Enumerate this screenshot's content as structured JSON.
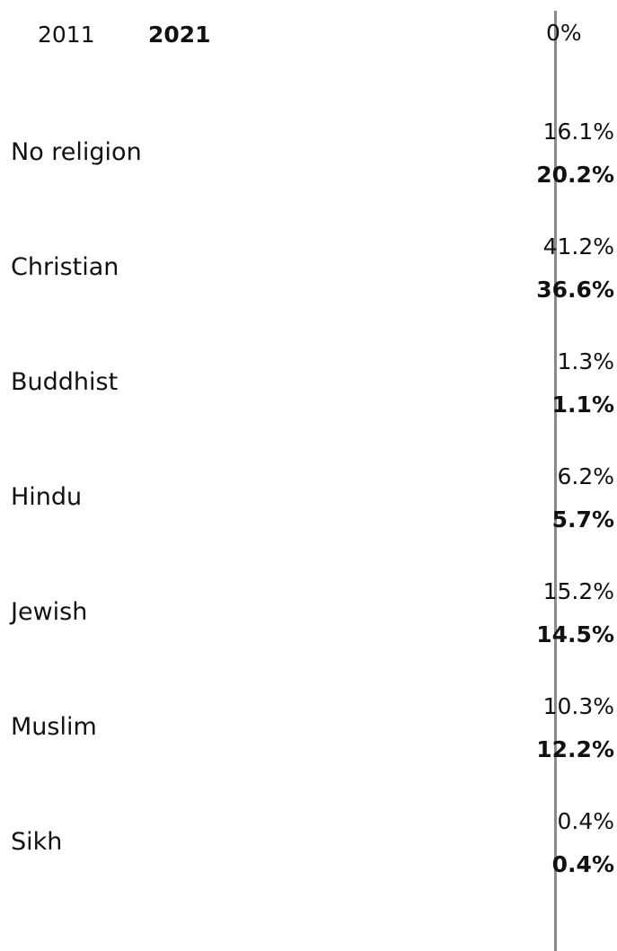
{
  "chart_data": {
    "type": "bar",
    "title": "",
    "xlabel": "",
    "ylabel": "",
    "x_ticks": [
      "0%"
    ],
    "categories": [
      "No religion",
      "Christian",
      "Buddhist",
      "Hindu",
      "Jewish",
      "Muslim",
      "Sikh"
    ],
    "series": [
      {
        "name": "2011",
        "values": [
          16.1,
          41.2,
          1.3,
          6.2,
          15.2,
          10.3,
          0.4
        ],
        "labels": [
          "16.1%",
          "41.2%",
          "1.3%",
          "6.2%",
          "15.2%",
          "10.3%",
          "0.4%"
        ]
      },
      {
        "name": "2021",
        "values": [
          20.2,
          36.6,
          1.1,
          5.7,
          14.5,
          12.2,
          0.4
        ],
        "labels": [
          "20.2%",
          "36.6%",
          "1.1%",
          "5.7%",
          "14.5%",
          "12.2%",
          "0.4%"
        ]
      }
    ],
    "colors": {
      "text": "#111111",
      "axis": "#8a8a8a",
      "background": "#ffffff"
    }
  }
}
